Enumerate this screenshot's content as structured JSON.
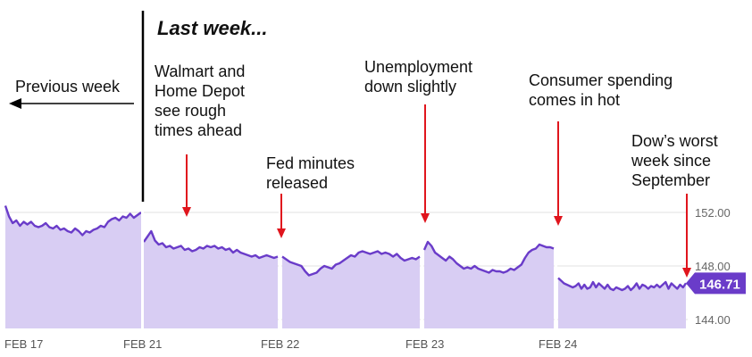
{
  "headline": "Last week...",
  "previous_week_label": "Previous week",
  "annotations": [
    {
      "text": "Walmart and\nHome Depot\nsee rough\ntimes ahead"
    },
    {
      "text": "Fed minutes\nreleased"
    },
    {
      "text": "Unemployment\ndown slightly"
    },
    {
      "text": "Consumer spending\ncomes in hot"
    },
    {
      "text": "Dow’s worst\nweek since\nSeptember"
    }
  ],
  "colors": {
    "line": "#6a3cc9",
    "fill": "#d8cdf3",
    "arrow": "#e0151d",
    "gridline": "#e2e2e2",
    "badge": "#6a3cc9"
  },
  "chart_data": {
    "type": "area",
    "title": "Last week...",
    "xlabel": "",
    "ylabel": "",
    "grid": true,
    "ylim": [
      144.0,
      153.2
    ],
    "y_ticks": [
      "152.00",
      "148.00",
      "144.00"
    ],
    "y_tick_values": [
      152,
      148,
      144
    ],
    "x_tick_labels": [
      "FEB 17",
      "FEB 21",
      "FEB 22",
      "FEB 23",
      "FEB 24"
    ],
    "last_value_label": "146.71",
    "sessions": [
      {
        "label": "FEB 17",
        "values": [
          152.5,
          151.7,
          151.2,
          151.4,
          151.0,
          151.3,
          151.1,
          151.3,
          151.0,
          150.9,
          151.0,
          151.2,
          150.9,
          150.8,
          151.0,
          150.7,
          150.8,
          150.6,
          150.5,
          150.8,
          150.6,
          150.3,
          150.6,
          150.5,
          150.7,
          150.8,
          151.0,
          150.9,
          151.3,
          151.5,
          151.6,
          151.4,
          151.7,
          151.6,
          151.9,
          151.6,
          151.8,
          152.0
        ]
      },
      {
        "label": "FEB 21",
        "values": [
          149.8,
          150.2,
          150.6,
          149.9,
          149.6,
          149.7,
          149.4,
          149.5,
          149.3,
          149.4,
          149.5,
          149.2,
          149.3,
          149.1,
          149.2,
          149.4,
          149.3,
          149.5,
          149.4,
          149.5,
          149.3,
          149.4,
          149.2,
          149.3,
          149.0,
          149.2,
          149.0,
          148.9,
          148.8,
          148.7,
          148.8,
          148.6,
          148.7,
          148.8,
          148.7,
          148.6,
          148.7
        ]
      },
      {
        "label": "FEB 22",
        "values": [
          148.7,
          148.5,
          148.3,
          148.2,
          148.1,
          148.0,
          147.6,
          147.3,
          147.4,
          147.5,
          147.8,
          148.0,
          147.9,
          147.8,
          148.1,
          148.2,
          148.4,
          148.6,
          148.8,
          148.7,
          149.0,
          149.1,
          149.0,
          148.9,
          149.0,
          149.1,
          148.9,
          149.0,
          148.9,
          148.7,
          148.9,
          148.6,
          148.4,
          148.5,
          148.6,
          148.5,
          148.7
        ]
      },
      {
        "label": "FEB 23",
        "values": [
          149.2,
          149.8,
          149.5,
          149.0,
          148.8,
          148.6,
          148.4,
          148.7,
          148.5,
          148.2,
          148.0,
          147.8,
          147.9,
          147.8,
          148.0,
          147.8,
          147.7,
          147.6,
          147.5,
          147.7,
          147.6,
          147.6,
          147.5,
          147.6,
          147.8,
          147.7,
          147.9,
          148.1,
          148.6,
          149.0,
          149.2,
          149.3,
          149.6,
          149.5,
          149.4,
          149.4,
          149.3
        ]
      },
      {
        "label": "FEB 24",
        "values": [
          147.1,
          146.9,
          146.7,
          146.6,
          146.5,
          146.4,
          146.5,
          146.7,
          146.3,
          146.6,
          146.3,
          146.4,
          146.8,
          146.4,
          146.7,
          146.5,
          146.3,
          146.6,
          146.3,
          146.2,
          146.4,
          146.3,
          146.2,
          146.3,
          146.5,
          146.2,
          146.4,
          146.7,
          146.3,
          146.6,
          146.5,
          146.3,
          146.5,
          146.4,
          146.6,
          146.4,
          146.6,
          146.8,
          146.3,
          146.7,
          146.5,
          146.3,
          146.6,
          146.4,
          146.71
        ]
      }
    ]
  }
}
